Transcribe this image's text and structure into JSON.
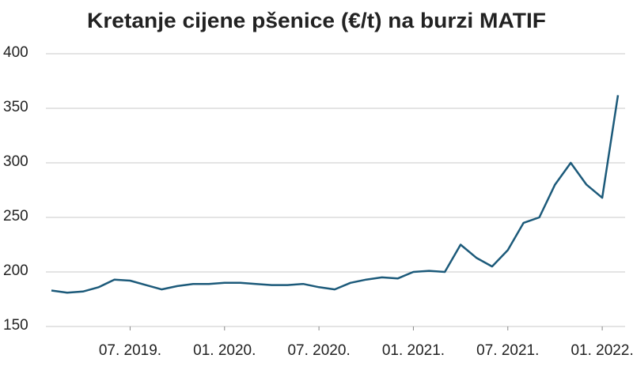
{
  "chart_data": {
    "type": "line",
    "title": "Kretanje cijene pšenice (€/t) na burzi MATIF",
    "x": [
      "2019-02",
      "2019-03",
      "2019-04",
      "2019-05",
      "2019-06",
      "2019-07",
      "2019-08",
      "2019-09",
      "2019-10",
      "2019-11",
      "2019-12",
      "2020-01",
      "2020-02",
      "2020-03",
      "2020-04",
      "2020-05",
      "2020-06",
      "2020-07",
      "2020-08",
      "2020-09",
      "2020-10",
      "2020-11",
      "2020-12",
      "2021-01",
      "2021-02",
      "2021-03",
      "2021-04",
      "2021-05",
      "2021-06",
      "2021-07",
      "2021-08",
      "2021-09",
      "2021-10",
      "2021-11",
      "2021-12",
      "2022-01",
      "2022-02"
    ],
    "values": [
      183,
      181,
      182,
      186,
      193,
      192,
      188,
      184,
      187,
      189,
      189,
      190,
      190,
      189,
      188,
      188,
      189,
      186,
      184,
      190,
      193,
      195,
      194,
      200,
      201,
      200,
      225,
      213,
      205,
      220,
      245,
      250,
      280,
      300,
      280,
      268,
      362
    ],
    "color": "#1c5a7a",
    "xlim": [
      "2019-02",
      "2022-02"
    ],
    "xticks": [
      {
        "value": "2019-07",
        "label": "07. 2019."
      },
      {
        "value": "2020-01",
        "label": "01. 2020."
      },
      {
        "value": "2020-07",
        "label": "07. 2020."
      },
      {
        "value": "2021-01",
        "label": "01. 2021."
      },
      {
        "value": "2021-07",
        "label": "07. 2021."
      },
      {
        "value": "2022-01",
        "label": "01. 2022."
      }
    ],
    "ylim": [
      150,
      400
    ],
    "yticks": [
      150,
      200,
      250,
      300,
      350,
      400
    ],
    "grid": true
  }
}
